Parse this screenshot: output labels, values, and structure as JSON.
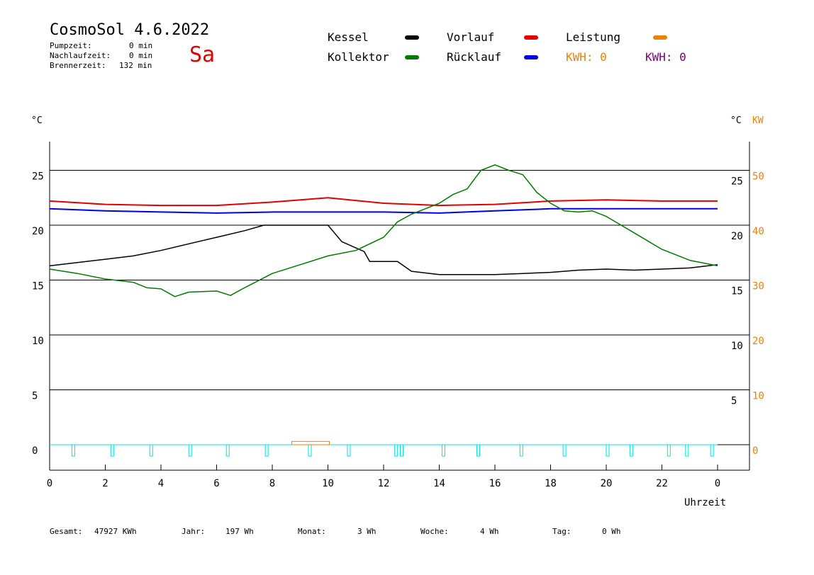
{
  "header": {
    "title": "CosmoSol 4.6.2022",
    "day": "Sa",
    "pump_label": "Pumpzeit:",
    "pump_value": "0 min",
    "nachlauf_label": "Nachlaufzeit:",
    "nachlauf_value": "0 min",
    "brenner_label": "Brennerzeit:",
    "brenner_value": "132 min"
  },
  "legend": {
    "kessel": "Kessel",
    "kollektor": "Kollektor",
    "vorlauf": "Vorlauf",
    "ruecklauf": "Rücklauf",
    "leistung": "Leistung",
    "kwh_orange": "KWH: 0",
    "kwh_purple": "KWH: 0"
  },
  "colors": {
    "kessel": "#000000",
    "kollektor": "#007a00",
    "vorlauf": "#e00000",
    "ruecklauf": "#0000e0",
    "leistung": "#f08000",
    "kwh_purple": "#800080",
    "pump": "#00e0e0",
    "grid": "#000000"
  },
  "footer": {
    "gesamt_label": "Gesamt:",
    "gesamt_value": "47927 KWh",
    "jahr_label": "Jahr:",
    "jahr_value": "197 Wh",
    "monat_label": "Monat:",
    "monat_value": "3 Wh",
    "woche_label": "Woche:",
    "woche_value": "4 Wh",
    "tag_label": "Tag:",
    "tag_value": "0 Wh"
  },
  "chart_data": {
    "type": "line",
    "xlabel": "Uhrzeit",
    "ylabel_left": "°C",
    "ylabel_right": "°C",
    "ylabel_right_kw": "KW",
    "xlim": [
      0,
      24
    ],
    "ylim": [
      -3,
      27
    ],
    "x_ticks": [
      "0",
      "2",
      "4",
      "6",
      "8",
      "10",
      "12",
      "14",
      "16",
      "18",
      "20",
      "22",
      "0"
    ],
    "y_ticks_left": [
      "0",
      "5",
      "10",
      "15",
      "20",
      "25"
    ],
    "y_ticks_right": [
      "5",
      "10",
      "15",
      "20",
      "25"
    ],
    "y_ticks_kw": [
      "0",
      "10",
      "20",
      "30",
      "40",
      "50"
    ],
    "gridlines_y": [
      5,
      10,
      15,
      20,
      25
    ],
    "series": [
      {
        "name": "Vorlauf",
        "x": [
          0,
          2,
          4,
          6,
          8,
          10,
          12,
          14,
          16,
          18,
          20,
          22,
          24
        ],
        "y": [
          22.2,
          21.9,
          21.8,
          21.8,
          22.1,
          22.5,
          22.0,
          21.8,
          21.9,
          22.2,
          22.3,
          22.2,
          22.2
        ]
      },
      {
        "name": "Rücklauf",
        "x": [
          0,
          2,
          4,
          6,
          8,
          10,
          12,
          14,
          16,
          18,
          20,
          22,
          24
        ],
        "y": [
          21.5,
          21.3,
          21.2,
          21.1,
          21.2,
          21.2,
          21.2,
          21.1,
          21.3,
          21.5,
          21.5,
          21.5,
          21.5
        ]
      },
      {
        "name": "Kessel",
        "x": [
          0,
          1,
          2,
          3,
          4,
          5,
          6,
          7,
          7.7,
          10,
          10.5,
          11.3,
          11.5,
          12.5,
          13,
          14,
          15,
          16,
          17,
          18,
          19,
          20,
          21,
          22,
          23,
          24
        ],
        "y": [
          16.3,
          16.6,
          16.9,
          17.2,
          17.7,
          18.3,
          18.9,
          19.5,
          20.0,
          20.0,
          18.5,
          17.6,
          16.7,
          16.7,
          15.8,
          15.5,
          15.5,
          15.5,
          15.6,
          15.7,
          15.9,
          16.0,
          15.9,
          16.0,
          16.1,
          16.4
        ]
      },
      {
        "name": "Kollektor",
        "x": [
          0,
          1,
          2,
          3,
          3.5,
          4,
          4.5,
          5,
          6,
          6.5,
          7,
          8,
          9,
          10,
          11,
          12,
          12.5,
          13,
          13.5,
          14,
          14.5,
          15,
          15.5,
          16,
          16.5,
          17,
          17.5,
          18,
          18.5,
          19,
          19.5,
          20,
          21,
          22,
          23,
          24
        ],
        "y": [
          16.0,
          15.6,
          15.1,
          14.8,
          14.3,
          14.2,
          13.5,
          13.9,
          14.0,
          13.6,
          14.3,
          15.6,
          16.4,
          17.2,
          17.7,
          18.9,
          20.3,
          21.0,
          21.5,
          22.0,
          22.8,
          23.3,
          25.0,
          25.5,
          25.0,
          24.6,
          23.0,
          22.0,
          21.3,
          21.2,
          21.3,
          20.8,
          19.3,
          17.8,
          16.8,
          16.3
        ]
      }
    ],
    "pump_pulses_x": [
      0.85,
      2.25,
      3.65,
      5.05,
      6.4,
      7.8,
      9.35,
      10.75,
      12.45,
      12.65,
      14.15,
      15.4,
      16.95,
      18.5,
      20.05,
      20.9,
      22.25,
      22.9,
      23.8
    ],
    "leistung_block": {
      "x_start": 8.7,
      "x_end": 10.05,
      "y": 0.3
    }
  }
}
